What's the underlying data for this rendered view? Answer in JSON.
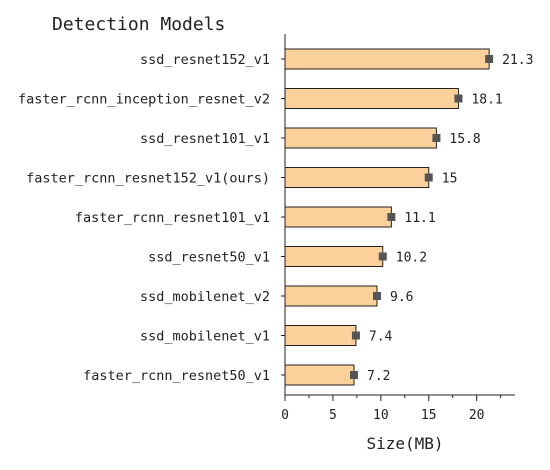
{
  "chart_data": {
    "type": "bar",
    "orientation": "horizontal",
    "title": "Detection Models",
    "xlabel": "Size(MB)",
    "ylabel": "",
    "xlim": [
      0,
      24
    ],
    "xticks": [
      0,
      5,
      10,
      15,
      20
    ],
    "categories": [
      "ssd_resnet152_v1",
      "faster_rcnn_inception_resnet_v2",
      "ssd_resnet101_v1",
      "faster_rcnn_resnet152_v1(ours)",
      "faster_rcnn_resnet101_v1",
      "ssd_resnet50_v1",
      "ssd_mobilenet_v2",
      "ssd_mobilenet_v1",
      "faster_rcnn_resnet50_v1"
    ],
    "values": [
      21.3,
      18.1,
      15.8,
      15,
      11.1,
      10.2,
      9.6,
      7.4,
      7.2
    ],
    "value_labels": [
      "21.3",
      "18.1",
      "15.8",
      "15",
      "11.1",
      "10.2",
      "9.6",
      "7.4",
      "7.2"
    ],
    "bar_color": "#fcd09a",
    "bar_edge_color": "#222222",
    "marker_color": "#555555",
    "grid": false
  }
}
